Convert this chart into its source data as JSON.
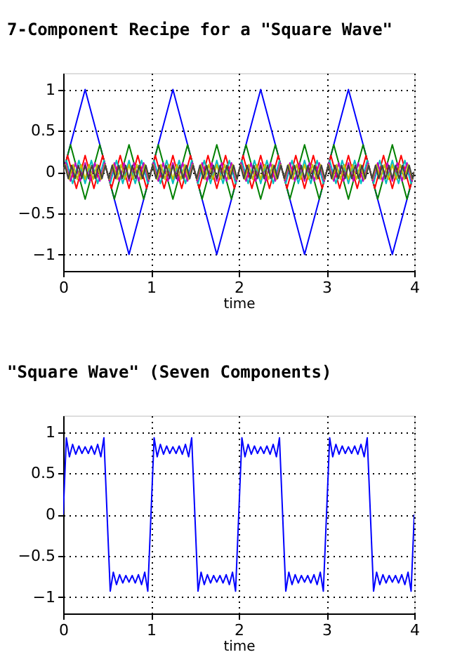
{
  "chart_data": [
    {
      "type": "line",
      "title": "7-Component Recipe for a \"Square Wave\"",
      "xlabel": "time",
      "xlim": [
        0,
        4
      ],
      "xticks": [
        0,
        1,
        2,
        3,
        4
      ],
      "ylim": [
        -1.2,
        1.2
      ],
      "yticks": [
        -1,
        -0.5,
        0,
        0.5,
        1
      ],
      "grid": true,
      "series": [
        {
          "color": "#0000ff",
          "x": [
            0,
            0.25,
            0.75,
            1.25,
            1.75,
            2.25,
            2.75,
            3.25,
            3.75,
            4
          ],
          "values": [
            0,
            1,
            -1,
            1,
            -1,
            1,
            -1,
            1,
            -1,
            0
          ]
        },
        {
          "color": "#008000",
          "x": [
            0,
            0.083,
            0.25,
            0.417,
            0.583,
            0.75,
            0.917,
            1.083,
            1.25,
            1.417,
            1.583,
            1.75,
            1.917,
            2.083,
            2.25,
            2.417,
            2.583,
            2.75,
            2.917,
            3.083,
            3.25,
            3.417,
            3.583,
            3.75,
            3.917,
            4
          ],
          "values": [
            0,
            0.33,
            -0.33,
            0.33,
            -0.33,
            0.33,
            -0.33,
            0.33,
            -0.33,
            0.33,
            -0.33,
            0.33,
            -0.33,
            0.33,
            -0.33,
            0.33,
            -0.33,
            0.33,
            -0.33,
            0.33,
            -0.33,
            0.33,
            -0.33,
            0.33,
            -0.33,
            0
          ]
        },
        {
          "color": "#ff0000",
          "x": [
            0,
            0.05,
            0.15,
            0.25,
            0.35,
            0.45,
            0.55,
            0.65,
            0.75,
            0.85,
            0.95,
            1.05,
            1.15,
            1.25,
            1.35,
            1.45,
            1.55,
            1.65,
            1.75,
            1.85,
            1.95,
            2.05,
            2.15,
            2.25,
            2.35,
            2.45,
            2.55,
            2.65,
            2.75,
            2.85,
            2.95,
            3.05,
            3.15,
            3.25,
            3.35,
            3.45,
            3.55,
            3.65,
            3.75,
            3.85,
            3.95,
            4
          ],
          "values": [
            0,
            0.2,
            -0.2,
            0.2,
            -0.2,
            0.2,
            -0.2,
            0.2,
            -0.2,
            0.2,
            -0.2,
            0.2,
            -0.2,
            0.2,
            -0.2,
            0.2,
            -0.2,
            0.2,
            -0.2,
            0.2,
            -0.2,
            0.2,
            -0.2,
            0.2,
            -0.2,
            0.2,
            -0.2,
            0.2,
            -0.2,
            0.2,
            -0.2,
            0.2,
            -0.2,
            0.2,
            -0.2,
            0.2,
            -0.2,
            0.2,
            -0.2,
            0.2,
            -0.2,
            0
          ]
        },
        {
          "color": "#00bfbf",
          "x": [
            0,
            0.036,
            0.107,
            0.179,
            0.25,
            0.321,
            0.393,
            0.464,
            0.536,
            0.607,
            0.679,
            0.75,
            0.821,
            0.893,
            0.964,
            1.036,
            1.107,
            1.179,
            1.25,
            1.321,
            1.393,
            1.464,
            1.536,
            1.607,
            1.679,
            1.75,
            1.821,
            1.893,
            1.964,
            2.036,
            2.107,
            2.179,
            2.25,
            2.321,
            2.393,
            2.464,
            2.536,
            2.607,
            2.679,
            2.75,
            2.821,
            2.893,
            2.964,
            3.036,
            3.107,
            3.179,
            3.25,
            3.321,
            3.393,
            3.464,
            3.536,
            3.607,
            3.679,
            3.75,
            3.821,
            3.893,
            3.964,
            4
          ],
          "values": [
            0,
            0.14,
            -0.14,
            0.14,
            -0.14,
            0.14,
            -0.14,
            0.14,
            -0.14,
            0.14,
            -0.14,
            0.14,
            -0.14,
            0.14,
            -0.14,
            0.14,
            -0.14,
            0.14,
            -0.14,
            0.14,
            -0.14,
            0.14,
            -0.14,
            0.14,
            -0.14,
            0.14,
            -0.14,
            0.14,
            -0.14,
            0.14,
            -0.14,
            0.14,
            -0.14,
            0.14,
            -0.14,
            0.14,
            -0.14,
            0.14,
            -0.14,
            0.14,
            -0.14,
            0.14,
            -0.14,
            0.14,
            -0.14,
            0.14,
            -0.14,
            0.14,
            -0.14,
            0.14,
            -0.14,
            0.14,
            -0.14,
            0.14,
            -0.14,
            0.14,
            -0.14,
            0
          ]
        },
        {
          "color": "#bf00bf",
          "x": [
            0,
            0.028,
            0.083,
            0.139,
            0.194,
            0.25,
            0.306,
            0.361,
            0.417,
            0.472,
            0.528,
            0.583,
            0.639,
            0.694,
            0.75,
            0.806,
            0.861,
            0.917,
            0.972,
            1.028,
            1.083,
            1.139,
            1.194,
            1.25,
            1.306,
            1.361,
            1.417,
            1.472,
            1.528,
            1.583,
            1.639,
            1.694,
            1.75,
            1.806,
            1.861,
            1.917,
            1.972,
            2.028,
            2.083,
            2.139,
            2.194,
            2.25,
            2.306,
            2.361,
            2.417,
            2.472,
            2.528,
            2.583,
            2.639,
            2.694,
            2.75,
            2.806,
            2.861,
            2.917,
            2.972,
            3.028,
            3.083,
            3.139,
            3.194,
            3.25,
            3.306,
            3.361,
            3.417,
            3.472,
            3.528,
            3.583,
            3.639,
            3.694,
            3.75,
            3.806,
            3.861,
            3.917,
            3.972,
            4
          ],
          "values": [
            0,
            0.11,
            -0.11,
            0.11,
            -0.11,
            0.11,
            -0.11,
            0.11,
            -0.11,
            0.11,
            -0.11,
            0.11,
            -0.11,
            0.11,
            -0.11,
            0.11,
            -0.11,
            0.11,
            -0.11,
            0.11,
            -0.11,
            0.11,
            -0.11,
            0.11,
            -0.11,
            0.11,
            -0.11,
            0.11,
            -0.11,
            0.11,
            -0.11,
            0.11,
            -0.11,
            0.11,
            -0.11,
            0.11,
            -0.11,
            0.11,
            -0.11,
            0.11,
            -0.11,
            0.11,
            -0.11,
            0.11,
            -0.11,
            0.11,
            -0.11,
            0.11,
            -0.11,
            0.11,
            -0.11,
            0.11,
            -0.11,
            0.11,
            -0.11,
            0.11,
            -0.11,
            0.11,
            -0.11,
            0.11,
            -0.11,
            0.11,
            -0.11,
            0.11,
            -0.11,
            0.11,
            -0.11,
            0.11,
            -0.11,
            0.11,
            -0.11,
            0.11,
            -0.11,
            0
          ]
        },
        {
          "color": "#bfbf00",
          "x": [
            0,
            0.023,
            0.068,
            0.114,
            0.159,
            0.205,
            0.25,
            0.295,
            0.341,
            0.386,
            0.432,
            0.477,
            0.523,
            0.568,
            0.614,
            0.659,
            0.705,
            0.75,
            0.795,
            0.841,
            0.886,
            0.932,
            0.977,
            1.023,
            1.068,
            1.114,
            1.159,
            1.205,
            1.25,
            1.295,
            1.341,
            1.386,
            1.432,
            1.477,
            1.523,
            1.568,
            1.614,
            1.659,
            1.705,
            1.75,
            1.795,
            1.841,
            1.886,
            1.932,
            1.977,
            2.023,
            2.068,
            2.114,
            2.159,
            2.205,
            2.25,
            2.295,
            2.341,
            2.386,
            2.432,
            2.477,
            2.523,
            2.568,
            2.614,
            2.659,
            2.705,
            2.75,
            2.795,
            2.841,
            2.886,
            2.932,
            2.977,
            3.023,
            3.068,
            3.114,
            3.159,
            3.205,
            3.25,
            3.295,
            3.341,
            3.386,
            3.432,
            3.477,
            3.523,
            3.568,
            3.614,
            3.659,
            3.705,
            3.75,
            3.795,
            3.841,
            3.886,
            3.932,
            3.977,
            4
          ],
          "values": [
            0,
            0.09,
            -0.09,
            0.09,
            -0.09,
            0.09,
            -0.09,
            0.09,
            -0.09,
            0.09,
            -0.09,
            0.09,
            -0.09,
            0.09,
            -0.09,
            0.09,
            -0.09,
            0.09,
            -0.09,
            0.09,
            -0.09,
            0.09,
            -0.09,
            0.09,
            -0.09,
            0.09,
            -0.09,
            0.09,
            -0.09,
            0.09,
            -0.09,
            0.09,
            -0.09,
            0.09,
            -0.09,
            0.09,
            -0.09,
            0.09,
            -0.09,
            0.09,
            -0.09,
            0.09,
            -0.09,
            0.09,
            -0.09,
            0.09,
            -0.09,
            0.09,
            -0.09,
            0.09,
            -0.09,
            0.09,
            -0.09,
            0.09,
            -0.09,
            0.09,
            -0.09,
            0.09,
            -0.09,
            0.09,
            -0.09,
            0.09,
            -0.09,
            0.09,
            -0.09,
            0.09,
            -0.09,
            0.09,
            -0.09,
            0.09,
            -0.09,
            0.09,
            -0.09,
            0.09,
            -0.09,
            0.09,
            -0.09,
            0.09,
            -0.09,
            0.09,
            -0.09,
            0.09,
            -0.09,
            0.09,
            -0.09,
            0.09,
            -0.09,
            0.09,
            -0.09,
            0
          ]
        },
        {
          "color": "#404040",
          "x": [
            0,
            0.019,
            0.058,
            0.096,
            0.135,
            0.173,
            0.212,
            0.25,
            0.288,
            0.327,
            0.365,
            0.404,
            0.442,
            0.481,
            0.519,
            0.558,
            0.596,
            0.635,
            0.673,
            0.712,
            0.75,
            0.788,
            0.827,
            0.865,
            0.904,
            0.942,
            0.981,
            1.019,
            1.058,
            1.096,
            1.135,
            1.173,
            1.212,
            1.25,
            1.288,
            1.327,
            1.365,
            1.404,
            1.442,
            1.481,
            1.519,
            1.558,
            1.596,
            1.635,
            1.673,
            1.712,
            1.75,
            1.788,
            1.827,
            1.865,
            1.904,
            1.942,
            1.981,
            2.019,
            2.058,
            2.096,
            2.135,
            2.173,
            2.212,
            2.25,
            2.288,
            2.327,
            2.365,
            2.404,
            2.442,
            2.481,
            2.519,
            2.558,
            2.596,
            2.635,
            2.673,
            2.712,
            2.75,
            2.788,
            2.827,
            2.865,
            2.904,
            2.942,
            2.981,
            3.019,
            3.058,
            3.096,
            3.135,
            3.173,
            3.212,
            3.25,
            3.288,
            3.327,
            3.365,
            3.404,
            3.442,
            3.481,
            3.519,
            3.558,
            3.596,
            3.635,
            3.673,
            3.712,
            3.75,
            3.788,
            3.827,
            3.865,
            3.904,
            3.942,
            3.981,
            4
          ],
          "values": [
            0,
            0.08,
            -0.08,
            0.08,
            -0.08,
            0.08,
            -0.08,
            0.08,
            -0.08,
            0.08,
            -0.08,
            0.08,
            -0.08,
            0.08,
            -0.08,
            0.08,
            -0.08,
            0.08,
            -0.08,
            0.08,
            -0.08,
            0.08,
            -0.08,
            0.08,
            -0.08,
            0.08,
            -0.08,
            0.08,
            -0.08,
            0.08,
            -0.08,
            0.08,
            -0.08,
            0.08,
            -0.08,
            0.08,
            -0.08,
            0.08,
            -0.08,
            0.08,
            -0.08,
            0.08,
            -0.08,
            0.08,
            -0.08,
            0.08,
            -0.08,
            0.08,
            -0.08,
            0.08,
            -0.08,
            0.08,
            -0.08,
            0.08,
            -0.08,
            0.08,
            -0.08,
            0.08,
            -0.08,
            0.08,
            -0.08,
            0.08,
            -0.08,
            0.08,
            -0.08,
            0.08,
            -0.08,
            0.08,
            -0.08,
            0.08,
            -0.08,
            0.08,
            -0.08,
            0.08,
            -0.08,
            0.08,
            -0.08,
            0.08,
            -0.08,
            0.08,
            -0.08,
            0.08,
            -0.08,
            0.08,
            -0.08,
            0.08,
            -0.08,
            0.08,
            -0.08,
            0.08,
            -0.08,
            0.08,
            -0.08,
            0.08,
            -0.08,
            0.08,
            -0.08,
            0.08,
            -0.08,
            0.08,
            -0.08,
            0.08,
            -0.08,
            0.08,
            -0.08,
            0
          ]
        }
      ]
    },
    {
      "type": "line",
      "title": "\"Square Wave\" (Seven Components)",
      "xlabel": "time",
      "xlim": [
        0,
        4
      ],
      "xticks": [
        0,
        1,
        2,
        3,
        4
      ],
      "ylim": [
        -1.2,
        1.2
      ],
      "yticks": [
        -1,
        -0.5,
        0,
        0.5,
        1
      ],
      "grid": true,
      "series": [
        {
          "color": "#0000ff",
          "x": [
            0,
            0.036,
            0.071,
            0.107,
            0.143,
            0.179,
            0.214,
            0.25,
            0.286,
            0.321,
            0.357,
            0.393,
            0.429,
            0.464,
            0.5,
            0.536,
            0.571,
            0.607,
            0.643,
            0.679,
            0.714,
            0.75,
            0.786,
            0.821,
            0.857,
            0.893,
            0.929,
            0.964,
            1,
            1.036,
            1.071,
            1.107,
            1.143,
            1.179,
            1.214,
            1.25,
            1.286,
            1.321,
            1.357,
            1.393,
            1.429,
            1.464,
            1.5,
            1.536,
            1.571,
            1.607,
            1.643,
            1.679,
            1.714,
            1.75,
            1.786,
            1.821,
            1.857,
            1.893,
            1.929,
            1.964,
            2,
            2.036,
            2.071,
            2.107,
            2.143,
            2.179,
            2.214,
            2.25,
            2.286,
            2.321,
            2.357,
            2.393,
            2.429,
            2.464,
            2.5,
            2.536,
            2.571,
            2.607,
            2.643,
            2.679,
            2.714,
            2.75,
            2.786,
            2.821,
            2.857,
            2.893,
            2.929,
            2.964,
            3,
            3.036,
            3.071,
            3.107,
            3.143,
            3.179,
            3.214,
            3.25,
            3.286,
            3.321,
            3.357,
            3.393,
            3.429,
            3.464,
            3.5,
            3.536,
            3.571,
            3.607,
            3.643,
            3.679,
            3.714,
            3.75,
            3.786,
            3.821,
            3.857,
            3.893,
            3.929,
            3.964,
            4
          ],
          "values": [
            0,
            0.93,
            0.7,
            0.85,
            0.73,
            0.83,
            0.74,
            0.82,
            0.74,
            0.83,
            0.73,
            0.85,
            0.7,
            0.93,
            0,
            -0.93,
            -0.7,
            -0.85,
            -0.73,
            -0.83,
            -0.74,
            -0.82,
            -0.74,
            -0.83,
            -0.73,
            -0.85,
            -0.7,
            -0.93,
            0,
            0.93,
            0.7,
            0.85,
            0.73,
            0.83,
            0.74,
            0.82,
            0.74,
            0.83,
            0.73,
            0.85,
            0.7,
            0.93,
            0,
            -0.93,
            -0.7,
            -0.85,
            -0.73,
            -0.83,
            -0.74,
            -0.82,
            -0.74,
            -0.83,
            -0.73,
            -0.85,
            -0.7,
            -0.93,
            0,
            0.93,
            0.7,
            0.85,
            0.73,
            0.83,
            0.74,
            0.82,
            0.74,
            0.83,
            0.73,
            0.85,
            0.7,
            0.93,
            0,
            -0.93,
            -0.7,
            -0.85,
            -0.73,
            -0.83,
            -0.74,
            -0.82,
            -0.74,
            -0.83,
            -0.73,
            -0.85,
            -0.7,
            -0.93,
            0,
            0.93,
            0.7,
            0.85,
            0.73,
            0.83,
            0.74,
            0.82,
            0.74,
            0.83,
            0.73,
            0.85,
            0.7,
            0.93,
            0,
            -0.93,
            -0.7,
            -0.85,
            -0.73,
            -0.83,
            -0.74,
            -0.82,
            -0.74,
            -0.83,
            -0.73,
            -0.85,
            -0.7,
            -0.93,
            0
          ]
        }
      ]
    }
  ]
}
